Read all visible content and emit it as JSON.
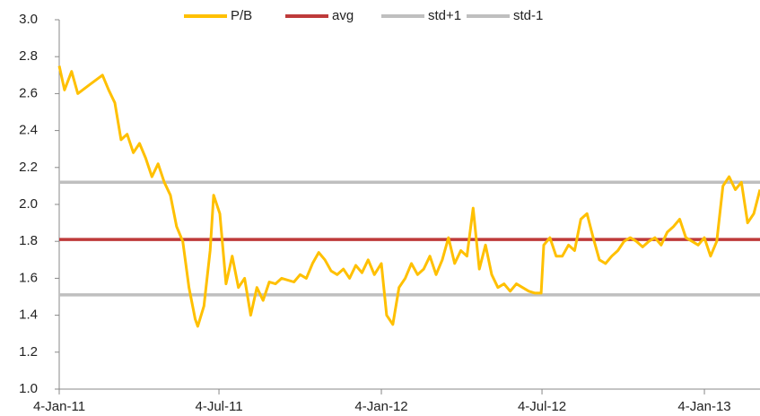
{
  "chart_data": {
    "type": "line",
    "xlim": [
      "2011-01-04",
      "2013-03-08"
    ],
    "xticks": [
      {
        "value": "2011-01-04",
        "label": "4-Jan-11"
      },
      {
        "value": "2011-07-04",
        "label": "4-Jul-11"
      },
      {
        "value": "2012-01-04",
        "label": "4-Jan-12"
      },
      {
        "value": "2012-07-04",
        "label": "4-Jul-12"
      },
      {
        "value": "2013-01-04",
        "label": "4-Jan-13"
      }
    ],
    "ylim": [
      1.0,
      3.0
    ],
    "yticks": [
      {
        "value": 1.0,
        "label": "1.0"
      },
      1.2,
      1.4,
      1.6,
      1.8,
      {
        "value": 2.0,
        "label": "2.0"
      },
      2.2,
      2.4,
      2.6,
      2.8,
      {
        "value": 3.0,
        "label": "3.0"
      }
    ],
    "grid": false,
    "legend": "top",
    "series": [
      {
        "name": "P/B",
        "color": "#ffc000",
        "x": [
          "2011-01-04",
          "2011-01-10",
          "2011-01-18",
          "2011-01-25",
          "2011-02-08",
          "2011-02-22",
          "2011-03-01",
          "2011-03-08",
          "2011-03-15",
          "2011-03-22",
          "2011-03-29",
          "2011-04-05",
          "2011-04-12",
          "2011-04-19",
          "2011-04-26",
          "2011-05-03",
          "2011-05-10",
          "2011-05-17",
          "2011-05-24",
          "2011-05-31",
          "2011-06-07",
          "2011-06-10",
          "2011-06-17",
          "2011-06-24",
          "2011-06-28",
          "2011-07-05",
          "2011-07-12",
          "2011-07-19",
          "2011-07-26",
          "2011-08-02",
          "2011-08-09",
          "2011-08-16",
          "2011-08-23",
          "2011-08-30",
          "2011-09-06",
          "2011-09-13",
          "2011-09-27",
          "2011-10-04",
          "2011-10-11",
          "2011-10-18",
          "2011-10-25",
          "2011-11-01",
          "2011-11-08",
          "2011-11-15",
          "2011-11-22",
          "2011-11-29",
          "2011-12-06",
          "2011-12-13",
          "2011-12-20",
          "2011-12-27",
          "2012-01-04",
          "2012-01-10",
          "2012-01-17",
          "2012-01-24",
          "2012-01-31",
          "2012-02-07",
          "2012-02-14",
          "2012-02-21",
          "2012-02-28",
          "2012-03-06",
          "2012-03-13",
          "2012-03-20",
          "2012-03-27",
          "2012-04-03",
          "2012-04-10",
          "2012-04-17",
          "2012-04-24",
          "2012-05-01",
          "2012-05-08",
          "2012-05-15",
          "2012-05-22",
          "2012-05-29",
          "2012-06-05",
          "2012-06-12",
          "2012-06-19",
          "2012-06-26",
          "2012-07-03",
          "2012-07-06",
          "2012-07-13",
          "2012-07-20",
          "2012-07-27",
          "2012-08-03",
          "2012-08-10",
          "2012-08-17",
          "2012-08-24",
          "2012-08-31",
          "2012-09-07",
          "2012-09-14",
          "2012-09-21",
          "2012-09-28",
          "2012-10-05",
          "2012-10-12",
          "2012-10-19",
          "2012-10-26",
          "2012-11-02",
          "2012-11-09",
          "2012-11-16",
          "2012-11-23",
          "2012-11-30",
          "2012-12-07",
          "2012-12-14",
          "2012-12-21",
          "2012-12-28",
          "2013-01-04",
          "2013-01-11",
          "2013-01-18",
          "2013-01-25",
          "2013-02-01",
          "2013-02-08",
          "2013-02-15",
          "2013-02-22",
          "2013-03-01",
          "2013-03-08"
        ],
        "values": [
          2.75,
          2.62,
          2.72,
          2.6,
          2.65,
          2.7,
          2.62,
          2.55,
          2.35,
          2.38,
          2.28,
          2.33,
          2.25,
          2.15,
          2.22,
          2.12,
          2.05,
          1.88,
          1.8,
          1.55,
          1.38,
          1.34,
          1.45,
          1.75,
          2.05,
          1.95,
          1.57,
          1.72,
          1.55,
          1.6,
          1.4,
          1.55,
          1.48,
          1.58,
          1.57,
          1.6,
          1.58,
          1.62,
          1.6,
          1.68,
          1.74,
          1.7,
          1.64,
          1.62,
          1.65,
          1.6,
          1.67,
          1.63,
          1.7,
          1.62,
          1.68,
          1.4,
          1.35,
          1.55,
          1.6,
          1.68,
          1.62,
          1.65,
          1.72,
          1.62,
          1.7,
          1.82,
          1.68,
          1.75,
          1.72,
          1.98,
          1.65,
          1.78,
          1.62,
          1.55,
          1.57,
          1.53,
          1.57,
          1.55,
          1.53,
          1.52,
          1.52,
          1.78,
          1.82,
          1.72,
          1.72,
          1.78,
          1.75,
          1.92,
          1.95,
          1.82,
          1.7,
          1.68,
          1.72,
          1.75,
          1.8,
          1.82,
          1.8,
          1.77,
          1.8,
          1.82,
          1.78,
          1.85,
          1.88,
          1.92,
          1.82,
          1.8,
          1.78,
          1.82,
          1.72,
          1.8,
          2.1,
          2.15,
          2.08,
          2.12,
          1.9,
          1.95,
          2.08
        ]
      },
      {
        "name": "avg",
        "color": "#be3a3a",
        "x": [
          "2011-01-04",
          "2013-03-08"
        ],
        "values": [
          1.81,
          1.81
        ]
      },
      {
        "name": "std+1",
        "color": "#bfbfbf",
        "x": [
          "2011-01-04",
          "2013-03-08"
        ],
        "values": [
          2.12,
          2.12
        ]
      },
      {
        "name": "std-1",
        "color": "#bfbfbf",
        "x": [
          "2011-01-04",
          "2013-03-08"
        ],
        "values": [
          1.51,
          1.51
        ]
      }
    ]
  }
}
